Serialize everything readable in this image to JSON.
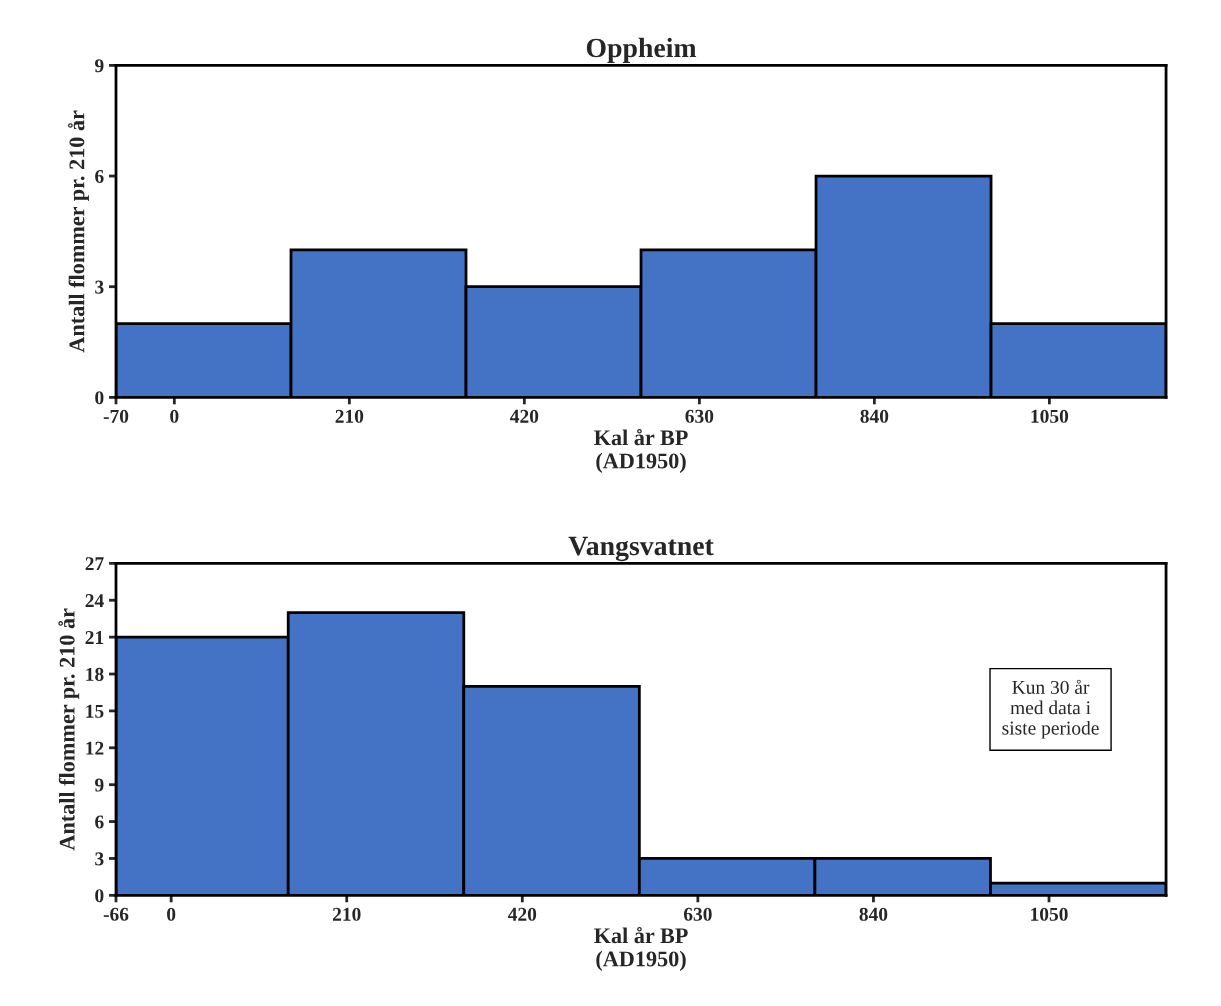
{
  "chart_data": [
    {
      "type": "histogram",
      "title": "Oppheim",
      "xlabel": "Kal år BP\n(AD1950)",
      "ylabel": "Antall flommer pr. 210 år",
      "color": "#4472c4",
      "bins": [
        -70,
        140,
        350,
        560,
        770,
        980,
        1190
      ],
      "values": [
        2,
        4,
        3,
        4,
        6,
        2
      ],
      "xlim": [
        -70,
        1190
      ],
      "xticks": [
        -70,
        0,
        210,
        420,
        630,
        840,
        1050
      ],
      "ylim": [
        0,
        9
      ],
      "yticks": [
        0,
        3,
        6,
        9
      ],
      "grid": false
    },
    {
      "type": "histogram",
      "title": "Vangsvatnet",
      "xlabel": "Kal år BP\n(AD1950)",
      "ylabel": "Antall flommer pr. 210 år",
      "color": "#4472c4",
      "bins": [
        -66,
        140,
        350,
        560,
        770,
        980,
        1190
      ],
      "values": [
        21,
        23,
        17,
        3,
        3,
        1
      ],
      "xlim": [
        -66,
        1190
      ],
      "xticks": [
        -66,
        0,
        210,
        420,
        630,
        840,
        1050
      ],
      "ylim": [
        0,
        27
      ],
      "yticks": [
        0,
        3,
        6,
        9,
        12,
        15,
        18,
        21,
        24,
        27
      ],
      "grid": false,
      "annotations": [
        "Kun 30 år\nmed data i\nsiste periode"
      ]
    }
  ]
}
